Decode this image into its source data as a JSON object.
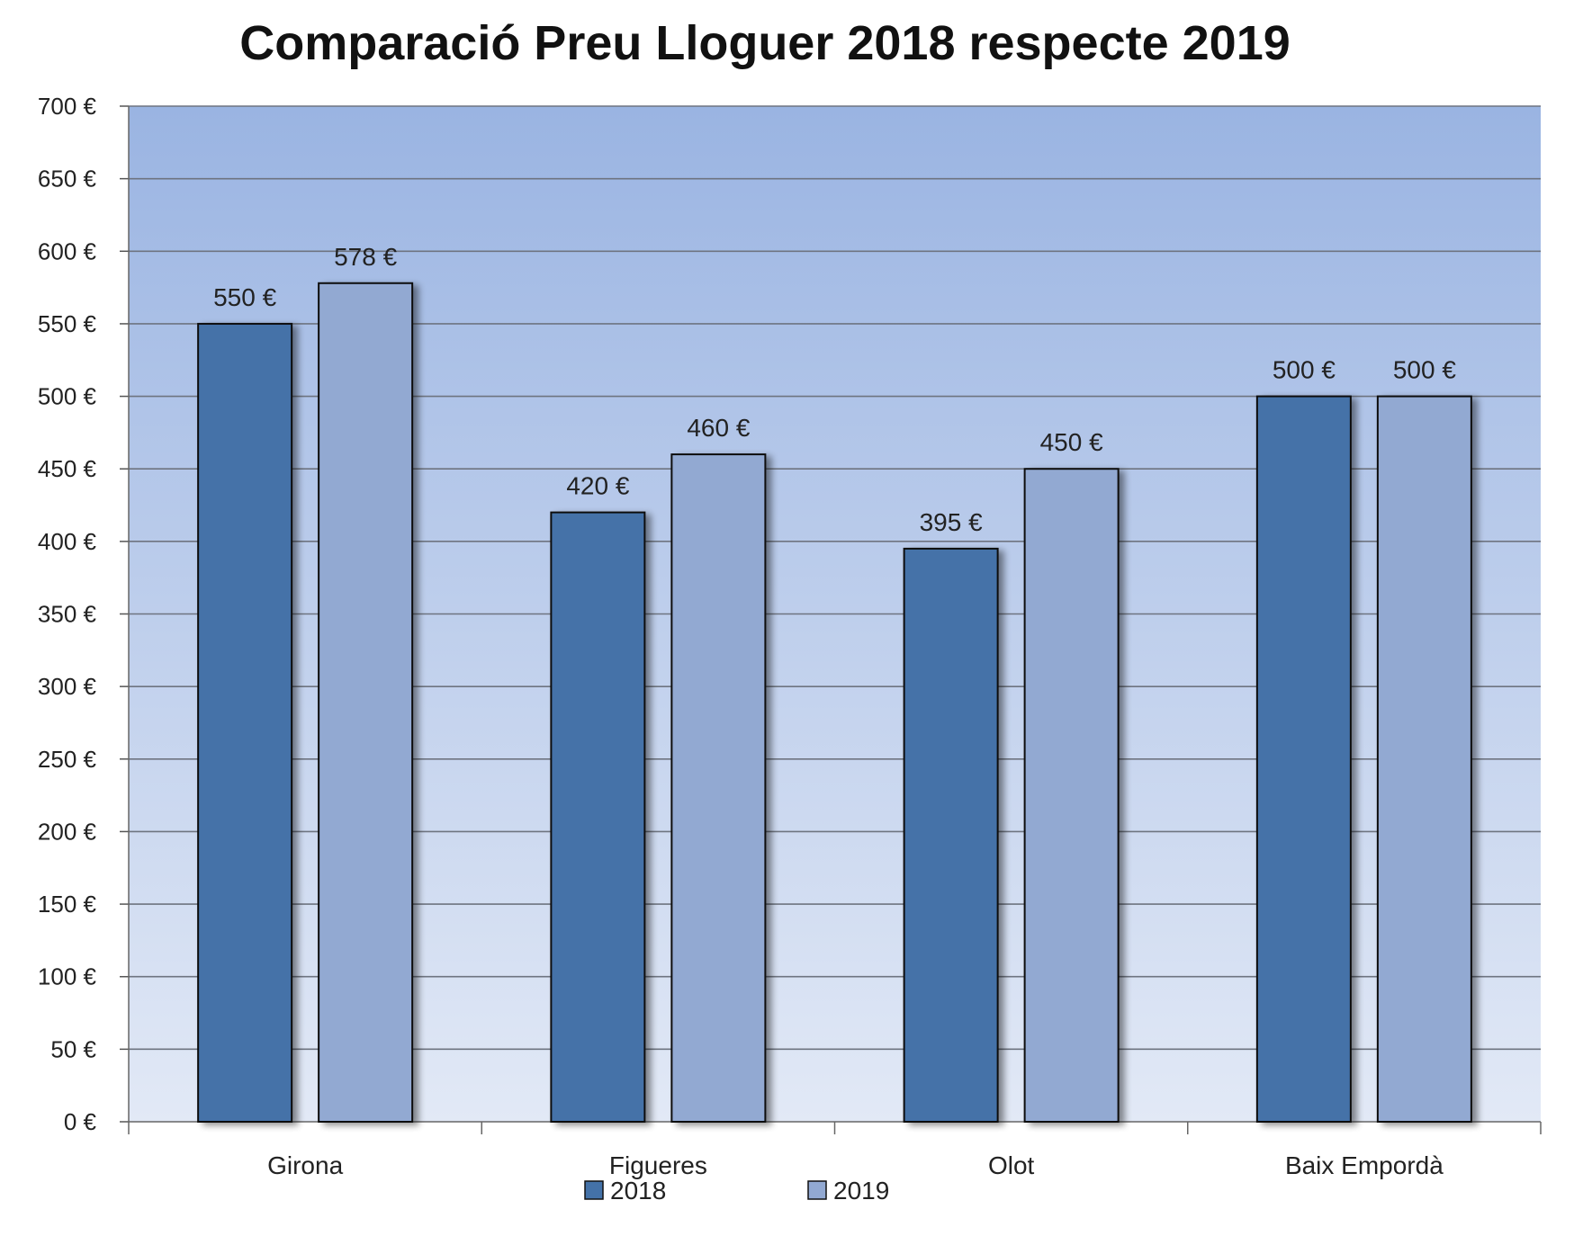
{
  "chart_data": {
    "type": "bar",
    "title": "Comparació Preu Lloguer 2018 respecte 2019",
    "categories": [
      "Girona",
      "Figueres",
      "Olot",
      "Baix Empordà"
    ],
    "series": [
      {
        "name": "2018",
        "values": [
          550,
          420,
          395,
          500
        ],
        "labels": [
          "550 €",
          "420 €",
          "395 €",
          "500 €"
        ],
        "color": "#4472A8"
      },
      {
        "name": "2019",
        "values": [
          578,
          460,
          450,
          500
        ],
        "labels": [
          "578 €",
          "460 €",
          "450 €",
          "500 €"
        ],
        "color": "#92A9D2"
      }
    ],
    "ylim": [
      0,
      700
    ],
    "yticks": [
      {
        "value": 0,
        "label": "0 €"
      },
      {
        "value": 50,
        "label": "50 €"
      },
      {
        "value": 100,
        "label": "100 €"
      },
      {
        "value": 150,
        "label": "150 €"
      },
      {
        "value": 200,
        "label": "200 €"
      },
      {
        "value": 250,
        "label": "250 €"
      },
      {
        "value": 300,
        "label": "300 €"
      },
      {
        "value": 350,
        "label": "350 €"
      },
      {
        "value": 400,
        "label": "400 €"
      },
      {
        "value": 450,
        "label": "450 €"
      },
      {
        "value": 500,
        "label": "500 €"
      },
      {
        "value": 550,
        "label": "550 €"
      },
      {
        "value": 600,
        "label": "600 €"
      },
      {
        "value": 650,
        "label": "650 €"
      },
      {
        "value": 700,
        "label": "700 €"
      }
    ],
    "xlabel": "",
    "ylabel": "",
    "grid": true,
    "legend_position": "bottom",
    "colors": {
      "plot_bg_top": "#9AB4E2",
      "plot_bg_bottom": "#E2E9F6",
      "gridline": "#6E7480",
      "bar_outline": "#111111"
    }
  }
}
